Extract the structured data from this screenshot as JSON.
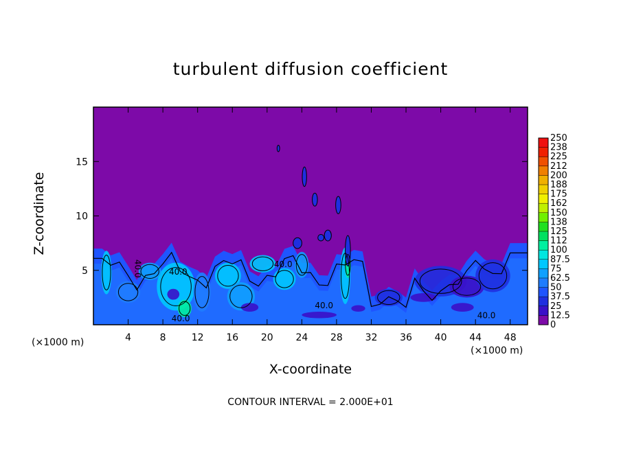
{
  "chart_data": {
    "type": "heatmap",
    "title": "turbulent diffusion coefficient",
    "xlabel": "X-coordinate",
    "ylabel": "Z-coordinate",
    "x_unit": "(×1000 m)",
    "z_unit": "(×1000 m)",
    "xlim": [
      0,
      50
    ],
    "ylim": [
      0,
      20
    ],
    "x_ticks": [
      "4",
      "8",
      "12",
      "16",
      "20",
      "24",
      "28",
      "32",
      "36",
      "40",
      "44",
      "48"
    ],
    "y_ticks": [
      "5",
      "10",
      "15"
    ],
    "colorbar_levels": [
      "0",
      "12.5",
      "25",
      "37.5",
      "50",
      "62.5",
      "75",
      "87.5",
      "100",
      "112",
      "125",
      "138",
      "150",
      "162",
      "175",
      "188",
      "200",
      "212",
      "225",
      "238",
      "250"
    ],
    "colorbar_colors": [
      "#7d0aa8",
      "#3b10c8",
      "#1f2fe0",
      "#1f55ff",
      "#1f7dff",
      "#0fa0ff",
      "#00c8ff",
      "#00e6e0",
      "#00f0a0",
      "#00e060",
      "#20e020",
      "#70f000",
      "#c0f000",
      "#f0f000",
      "#f0d000",
      "#f0b000",
      "#f08000",
      "#f05000",
      "#f02000",
      "#f01010",
      "#f08080"
    ],
    "contour_labels": [
      "40.0",
      "40.0",
      "40.0",
      "40.0",
      "40.0",
      "40.0"
    ],
    "contour_interval_text": "CONTOUR INTERVAL = 2.000E+01"
  }
}
